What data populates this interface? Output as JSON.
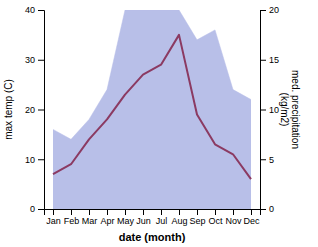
{
  "chart_data": {
    "type": "line",
    "xlabel": "date (month)",
    "ylabel": "max temp (C)",
    "y2label": "med. precipitation\n (kg/m2)",
    "categories": [
      "Jan",
      "Feb",
      "Mar",
      "Apr",
      "May",
      "Jun",
      "Jul",
      "Aug",
      "Sep",
      "Oct",
      "Nov",
      "Dec"
    ],
    "series": [
      {
        "type": "area",
        "axis": "y2",
        "color": "#b8bfe8",
        "values": [
          8,
          7,
          9,
          12,
          20,
          20,
          20,
          20,
          17,
          18,
          12,
          11
        ]
      },
      {
        "type": "line",
        "color": "#8B3A62",
        "values": [
          7,
          9,
          14,
          18,
          23,
          27,
          29,
          35,
          19,
          13,
          11,
          6
        ]
      }
    ],
    "ylim": [
      0,
      40
    ],
    "yticks": [
      0,
      10,
      20,
      30,
      40
    ],
    "y2lim": [
      0,
      20
    ],
    "y2ticks": [
      0,
      5,
      10,
      15,
      20
    ]
  }
}
